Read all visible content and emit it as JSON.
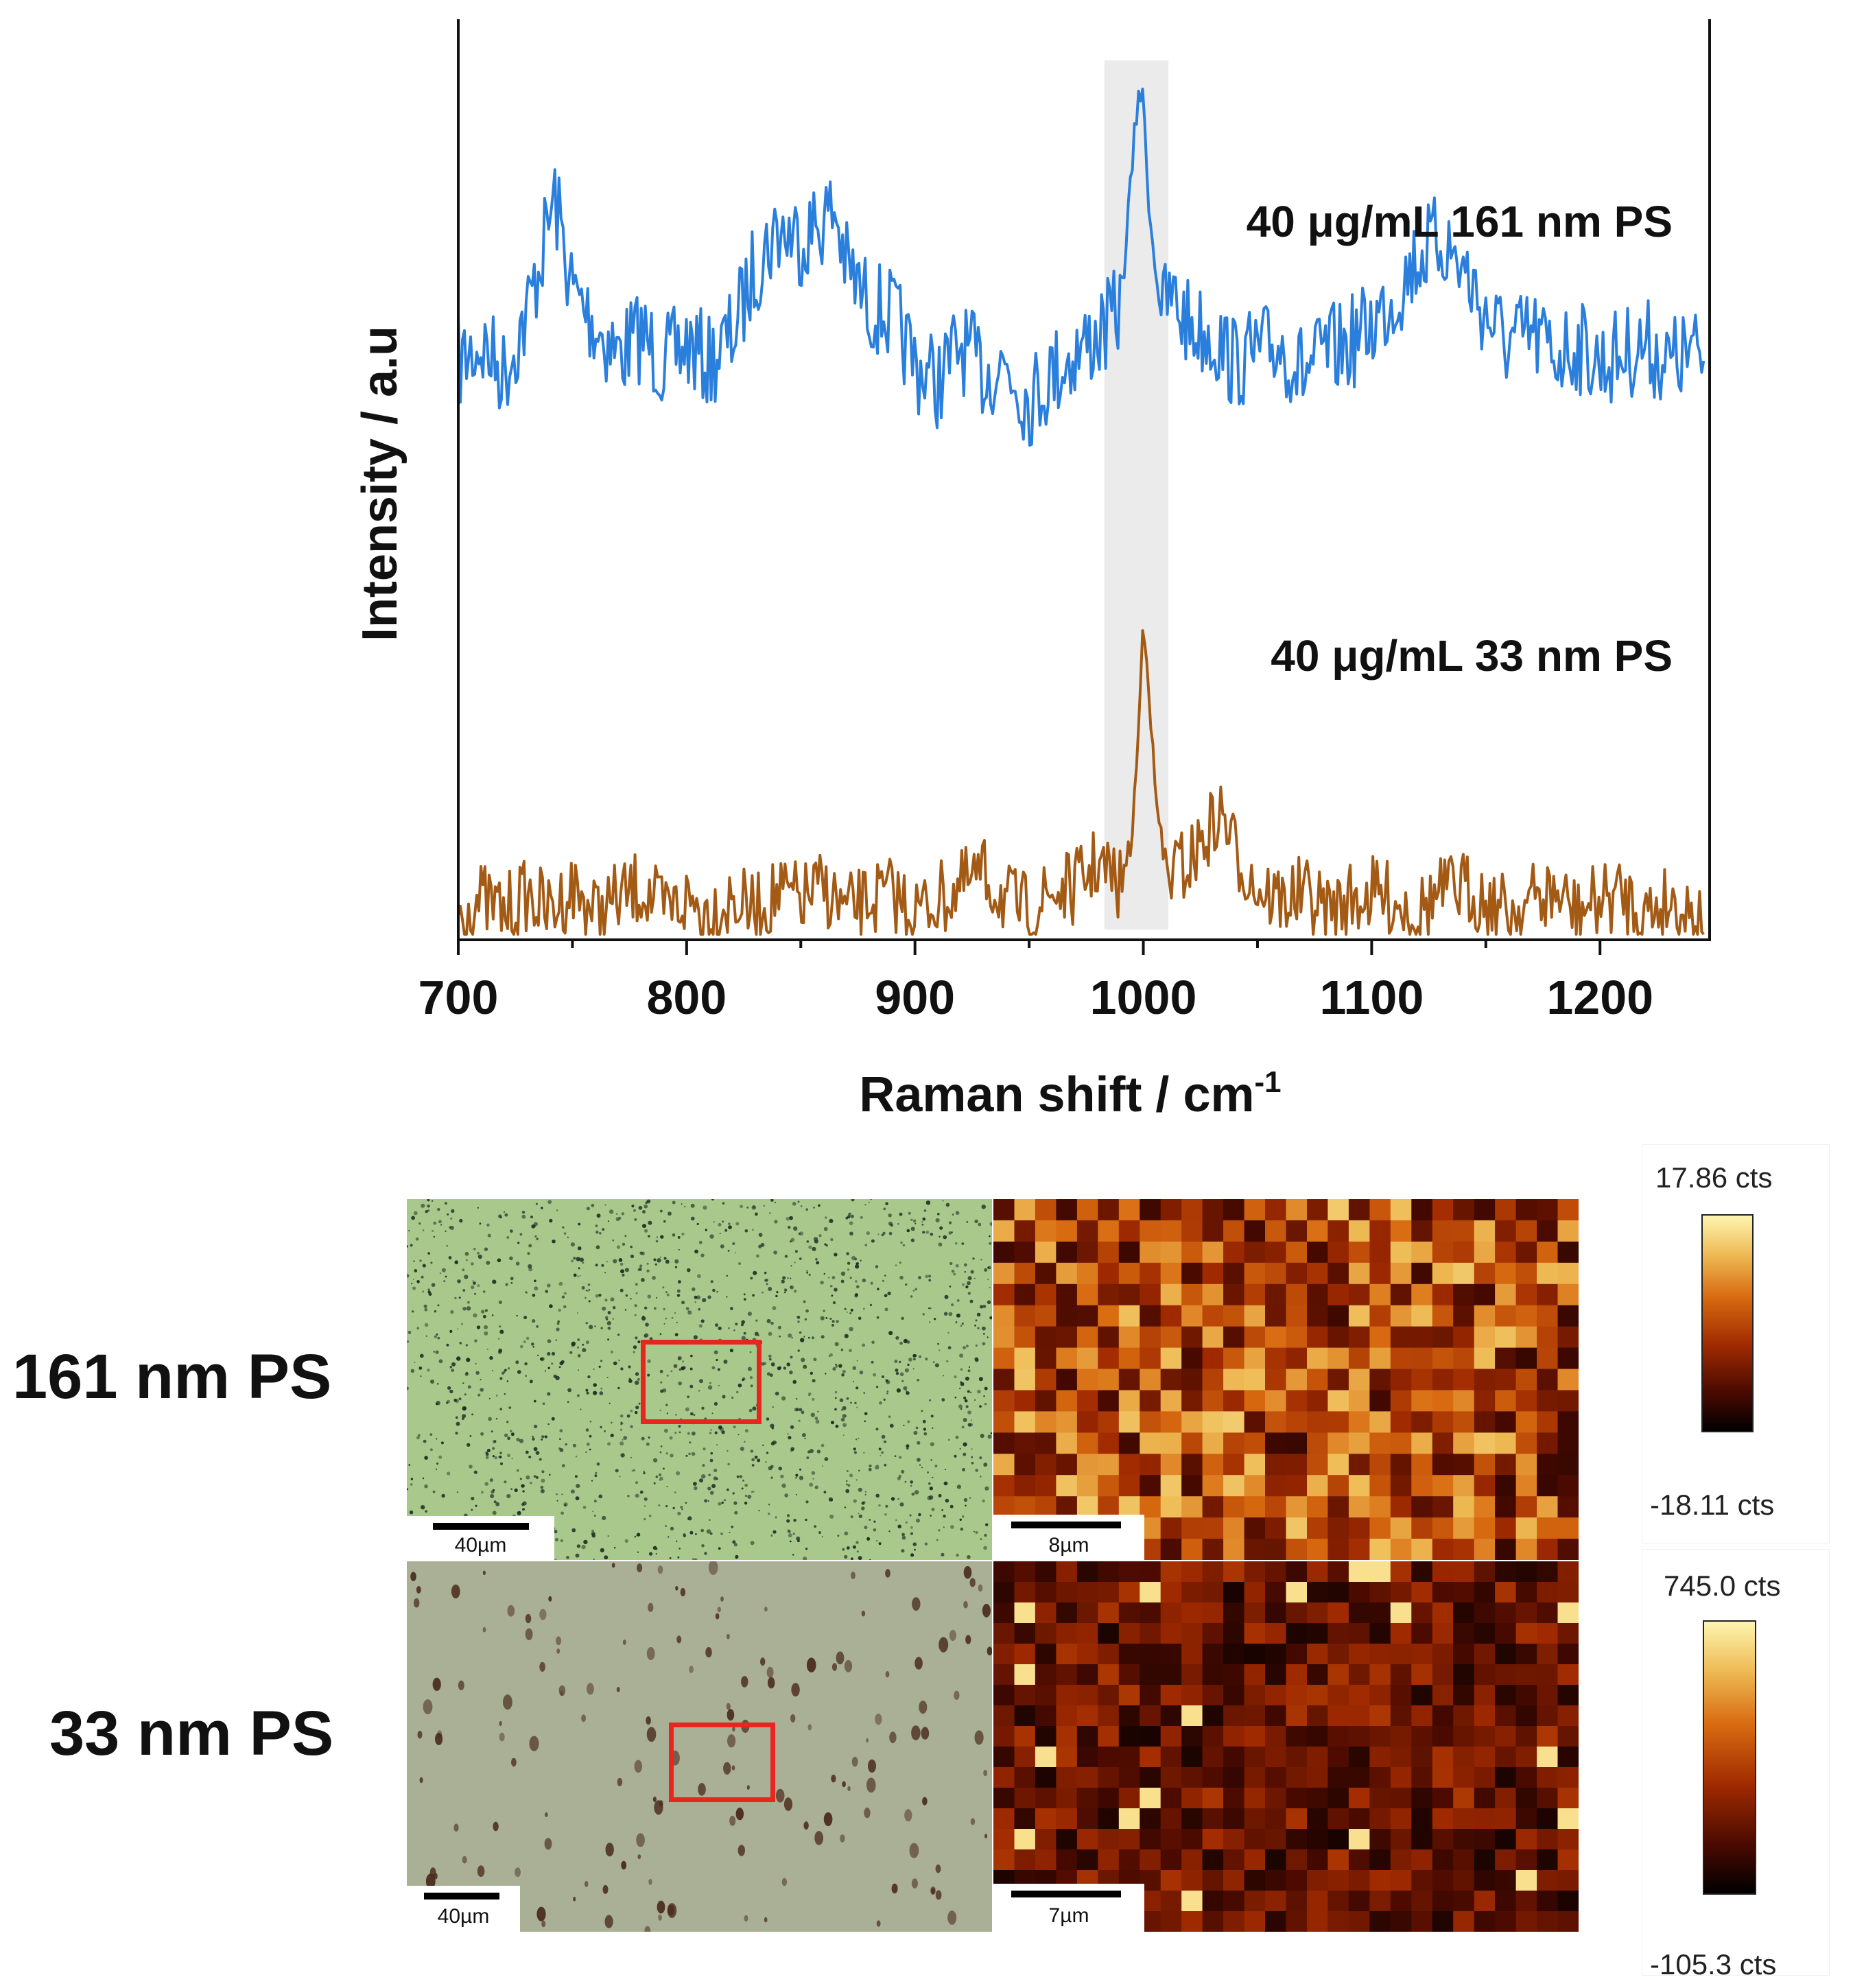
{
  "chart_data": {
    "type": "line",
    "title": "",
    "xlabel": "Raman shift / cm",
    "xlabel_superscript": "-1",
    "ylabel": "Intensity / a.u",
    "xlim": [
      700,
      1248
    ],
    "xticks": [
      700,
      800,
      900,
      1000,
      1100,
      1200
    ],
    "highlight_band": [
      983,
      1011
    ],
    "series": [
      {
        "name": "40 μg/mL 161 nm PS",
        "color": "#2b7fdc",
        "x": [
          700,
          710,
          720,
          730,
          740,
          742,
          750,
          760,
          770,
          780,
          790,
          800,
          810,
          820,
          830,
          840,
          850,
          860,
          865,
          870,
          880,
          890,
          900,
          910,
          920,
          930,
          940,
          950,
          960,
          970,
          980,
          985,
          990,
          995,
          998,
          1000,
          1003,
          1008,
          1012,
          1020,
          1030,
          1040,
          1050,
          1060,
          1070,
          1080,
          1090,
          1100,
          1110,
          1120,
          1130,
          1140,
          1150,
          1160,
          1170,
          1180,
          1190,
          1200,
          1210,
          1220,
          1230,
          1240,
          1248
        ],
        "values": [
          0.3,
          0.34,
          0.28,
          0.4,
          0.6,
          0.65,
          0.45,
          0.38,
          0.32,
          0.36,
          0.3,
          0.34,
          0.3,
          0.36,
          0.5,
          0.58,
          0.56,
          0.6,
          0.62,
          0.5,
          0.42,
          0.4,
          0.3,
          0.26,
          0.34,
          0.28,
          0.3,
          0.22,
          0.28,
          0.32,
          0.36,
          0.38,
          0.42,
          0.7,
          0.88,
          0.84,
          0.6,
          0.4,
          0.44,
          0.38,
          0.36,
          0.3,
          0.32,
          0.34,
          0.28,
          0.32,
          0.34,
          0.38,
          0.44,
          0.52,
          0.56,
          0.5,
          0.4,
          0.34,
          0.36,
          0.32,
          0.34,
          0.3,
          0.32,
          0.34,
          0.3,
          0.32,
          0.3
        ]
      },
      {
        "name": "40 μg/mL 33 nm PS",
        "color": "#a35a14",
        "x": [
          700,
          710,
          720,
          730,
          740,
          750,
          760,
          770,
          780,
          790,
          800,
          810,
          820,
          830,
          840,
          850,
          860,
          870,
          880,
          890,
          900,
          910,
          920,
          930,
          940,
          950,
          960,
          970,
          980,
          985,
          990,
          995,
          998,
          1000,
          1002,
          1005,
          1010,
          1020,
          1030,
          1035,
          1040,
          1050,
          1060,
          1070,
          1080,
          1090,
          1100,
          1110,
          1120,
          1130,
          1140,
          1150,
          1160,
          1170,
          1180,
          1190,
          1200,
          1210,
          1220,
          1230,
          1240,
          1248
        ],
        "values": [
          0.0,
          0.02,
          0.0,
          0.03,
          0.0,
          0.04,
          0.0,
          0.02,
          0.04,
          0.0,
          0.02,
          0.0,
          0.02,
          0.0,
          0.03,
          0.02,
          0.04,
          0.0,
          0.02,
          0.03,
          0.0,
          0.02,
          0.04,
          0.06,
          0.02,
          0.0,
          0.03,
          0.04,
          0.08,
          0.06,
          0.04,
          0.12,
          0.3,
          0.48,
          0.4,
          0.2,
          0.06,
          0.08,
          0.14,
          0.16,
          0.1,
          0.04,
          0.02,
          0.03,
          0.0,
          0.02,
          0.03,
          0.02,
          0.0,
          0.03,
          0.04,
          0.02,
          0.0,
          0.02,
          0.03,
          0.0,
          0.02,
          0.03,
          0.0,
          0.02,
          0.0,
          0.0
        ]
      }
    ]
  },
  "row_labels": [
    "161 nm PS",
    "33 nm PS"
  ],
  "scalebars": {
    "optical_161": "40µm",
    "map_161": "8µm",
    "optical_33": "40µm",
    "map_33": "7µm"
  },
  "colorbars": {
    "row161": {
      "max": "17.86 cts",
      "min": "-18.11 cts"
    },
    "row33": {
      "max": "745.0 cts",
      "min": "-105.3 cts"
    }
  },
  "colors": {
    "roi": "#e8261f",
    "highlight": "#ebebeb",
    "optical_161_bg": "#a9c98c",
    "optical_33_bg": "#a9b096"
  }
}
